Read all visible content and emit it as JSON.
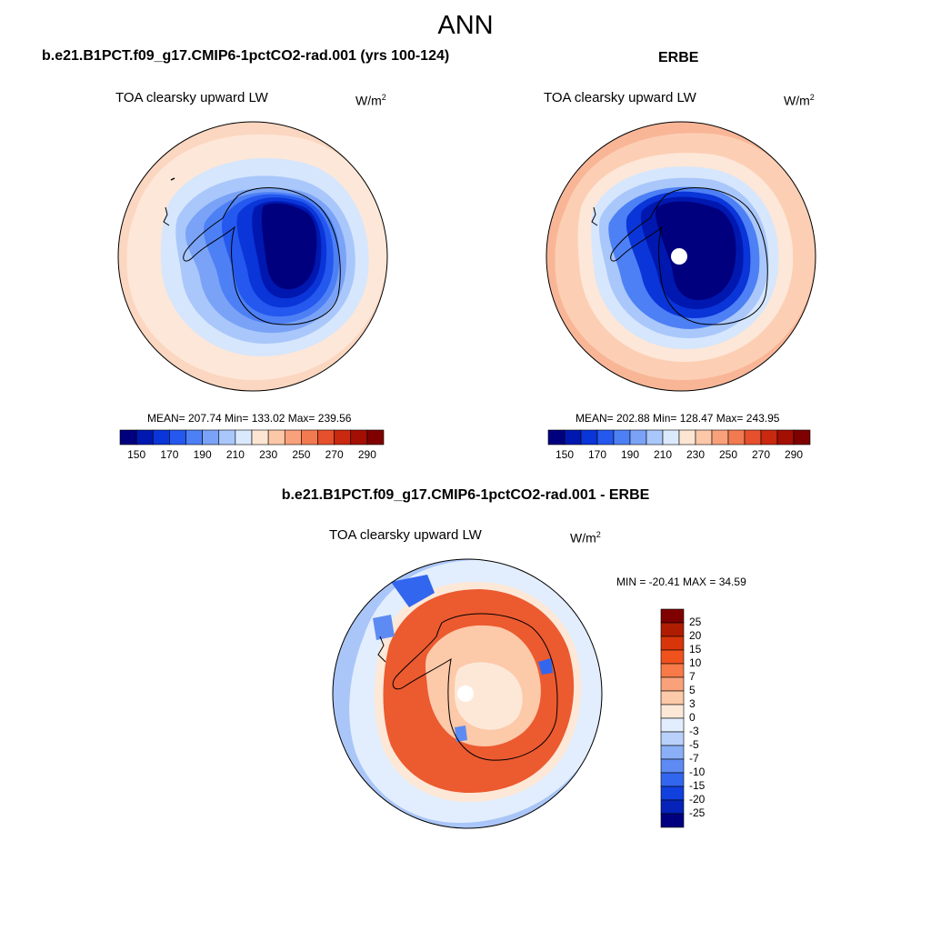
{
  "main_title": "ANN",
  "panels": {
    "model": {
      "title": "b.e21.B1PCT.f09_g17.CMIP6-1pctCO2-rad.001 (yrs 100-124)",
      "variable": "TOA clearsky upward LW",
      "units": "W/m",
      "units_sup": "2",
      "stats": "MEAN= 207.74  Min= 133.02  Max= 239.56"
    },
    "obs": {
      "title": "ERBE",
      "variable": "TOA clearsky upward LW",
      "units": "W/m",
      "units_sup": "2",
      "stats": "MEAN= 202.88  Min= 128.47  Max= 243.95"
    },
    "diff": {
      "title": "b.e21.B1PCT.f09_g17.CMIP6-1pctCO2-rad.001 - ERBE",
      "variable": "TOA clearsky upward LW",
      "units": "W/m",
      "units_sup": "2",
      "stats": "MIN = -20.41 MAX =  34.59"
    }
  },
  "colorbar_main": {
    "labels": [
      "150",
      "170",
      "190",
      "210",
      "230",
      "250",
      "270",
      "290"
    ],
    "colors": [
      "#00007f",
      "#0018b0",
      "#0a35d8",
      "#2458ee",
      "#4d80f5",
      "#7aa3f7",
      "#a9c7fa",
      "#dbe9fd",
      "#fde5d4",
      "#fcc8a8",
      "#f9a17a",
      "#f27a50",
      "#e6502c",
      "#c8290f",
      "#a40f04",
      "#7f0000"
    ]
  },
  "colorbar_diff": {
    "labels": [
      "25",
      "20",
      "15",
      "10",
      "7",
      "5",
      "3",
      "0",
      "-3",
      "-5",
      "-7",
      "-10",
      "-15",
      "-20",
      "-25"
    ],
    "colors": [
      "#7f0000",
      "#b01c00",
      "#d8360a",
      "#f0521e",
      "#f77a48",
      "#f9a27a",
      "#fcc9a9",
      "#fde8d8",
      "#e2eefd",
      "#b9d1fa",
      "#8aaff6",
      "#5e8bf3",
      "#3266ee",
      "#1240de",
      "#0523b8",
      "#00007f"
    ]
  },
  "map_colors": {
    "ocean_model": "#fbd6c0",
    "ocean_obs": "#f9b697",
    "ice_edge": "#d3e4fb",
    "interior_dark": "#00007f",
    "diff_ocean": "#aac6f8",
    "diff_land": "#ec5a2f"
  }
}
